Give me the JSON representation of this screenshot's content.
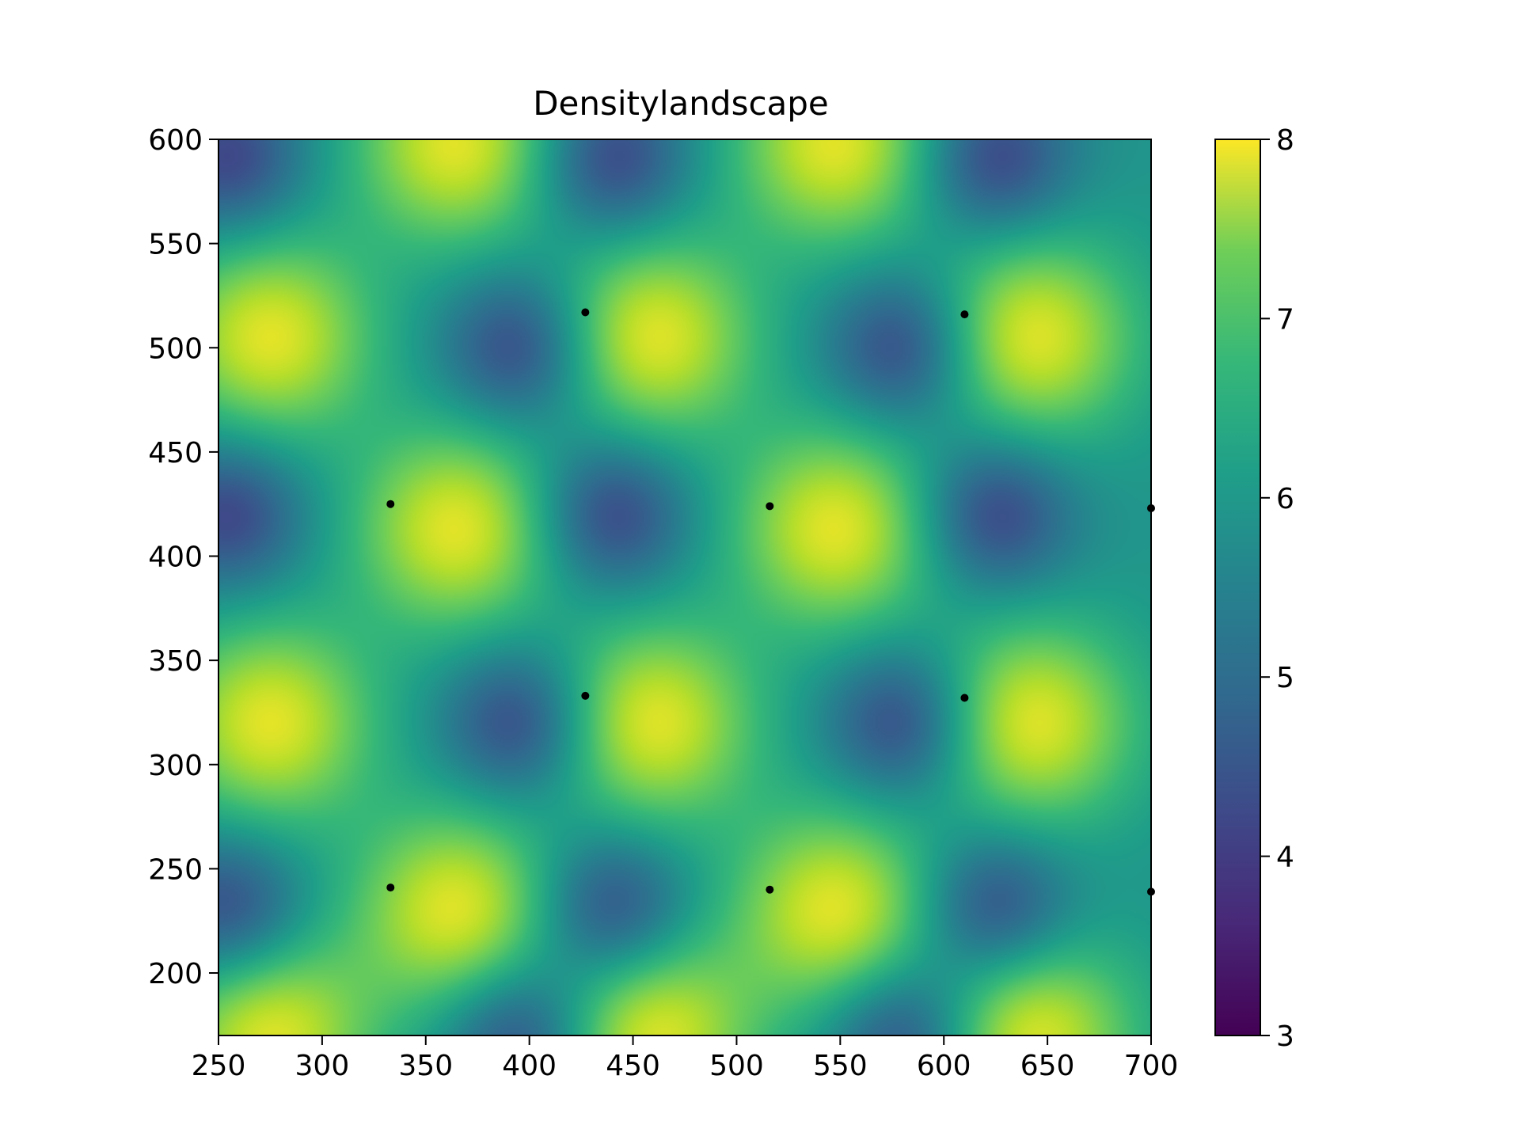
{
  "chart_data": {
    "type": "heatmap",
    "title": "Densitylandscape",
    "xlabel": "",
    "ylabel": "",
    "xlim": [
      250,
      700
    ],
    "ylim": [
      170,
      600
    ],
    "x_ticks": [
      250,
      300,
      350,
      400,
      450,
      500,
      550,
      600,
      650,
      700
    ],
    "y_ticks": [
      200,
      250,
      300,
      350,
      400,
      450,
      500,
      550,
      600
    ],
    "colormap": "viridis",
    "colorbar": {
      "range": [
        3,
        8
      ],
      "ticks": [
        3,
        4,
        5,
        6,
        7,
        8
      ]
    },
    "density_model": {
      "baseline": 5.6,
      "peak_value": 7.8,
      "trough_value": 4.0,
      "peaks": [
        [
          275,
          505
        ],
        [
          460,
          505
        ],
        [
          643,
          505
        ],
        [
          365,
          413
        ],
        [
          548,
          413
        ],
        [
          275,
          320
        ],
        [
          460,
          320
        ],
        [
          643,
          320
        ],
        [
          365,
          230
        ],
        [
          548,
          230
        ],
        [
          365,
          598
        ],
        [
          548,
          598
        ],
        [
          275,
          170
        ],
        [
          460,
          170
        ],
        [
          643,
          170
        ]
      ],
      "troughs": [
        [
          395,
          500
        ],
        [
          580,
          500
        ],
        [
          395,
          320
        ],
        [
          580,
          320
        ],
        [
          255,
          420
        ],
        [
          440,
          420
        ],
        [
          625,
          420
        ],
        [
          255,
          230
        ],
        [
          440,
          230
        ],
        [
          625,
          230
        ],
        [
          255,
          590
        ],
        [
          440,
          590
        ],
        [
          625,
          590
        ],
        [
          395,
          170
        ],
        [
          580,
          170
        ]
      ]
    },
    "markers": {
      "color": "#000000",
      "points": [
        [
          427,
          517
        ],
        [
          610,
          516
        ],
        [
          333,
          425
        ],
        [
          516,
          424
        ],
        [
          700,
          423
        ],
        [
          427,
          333
        ],
        [
          610,
          332
        ],
        [
          333,
          241
        ],
        [
          516,
          240
        ],
        [
          700,
          239
        ]
      ]
    }
  }
}
